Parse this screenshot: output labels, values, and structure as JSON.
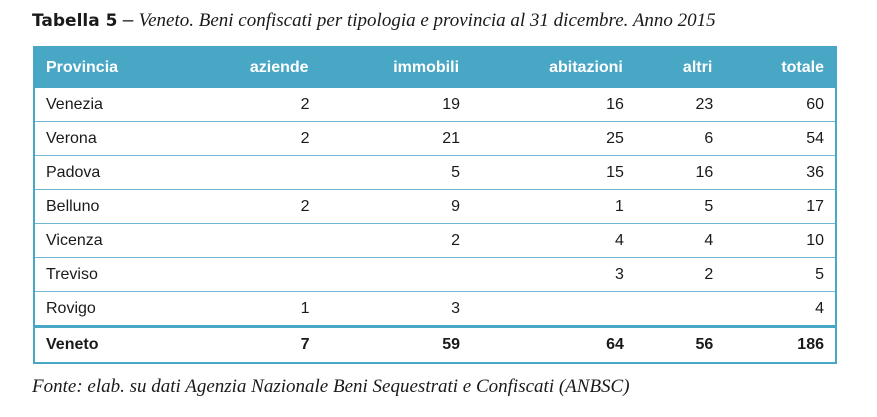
{
  "caption": {
    "label": "Tabella 5",
    "separator": " – ",
    "title": "Veneto. Beni confiscati per tipologia e provincia al 31 dicembre. Anno 2015"
  },
  "table": {
    "headers": [
      "Provincia",
      "aziende",
      "immobili",
      "abitazioni",
      "altri",
      "totale"
    ],
    "rows": [
      [
        "Venezia",
        "2",
        "19",
        "16",
        "23",
        "60"
      ],
      [
        "Verona",
        "2",
        "21",
        "25",
        "6",
        "54"
      ],
      [
        "Padova",
        "",
        "5",
        "15",
        "16",
        "36"
      ],
      [
        "Belluno",
        "2",
        "9",
        "1",
        "5",
        "17"
      ],
      [
        "Vicenza",
        "",
        "2",
        "4",
        "4",
        "10"
      ],
      [
        "Treviso",
        "",
        "",
        "3",
        "2",
        "5"
      ],
      [
        "Rovigo",
        "1",
        "3",
        "",
        "",
        "4"
      ]
    ],
    "total_row": [
      "Veneto",
      "7",
      "59",
      "64",
      "56",
      "186"
    ]
  },
  "source": "Fonte: elab. su dati Agenzia Nazionale Beni Sequestrati e Confiscati (ANBSC)",
  "colors": {
    "header_bg": "#49a7c6",
    "header_text": "#ffffff"
  }
}
